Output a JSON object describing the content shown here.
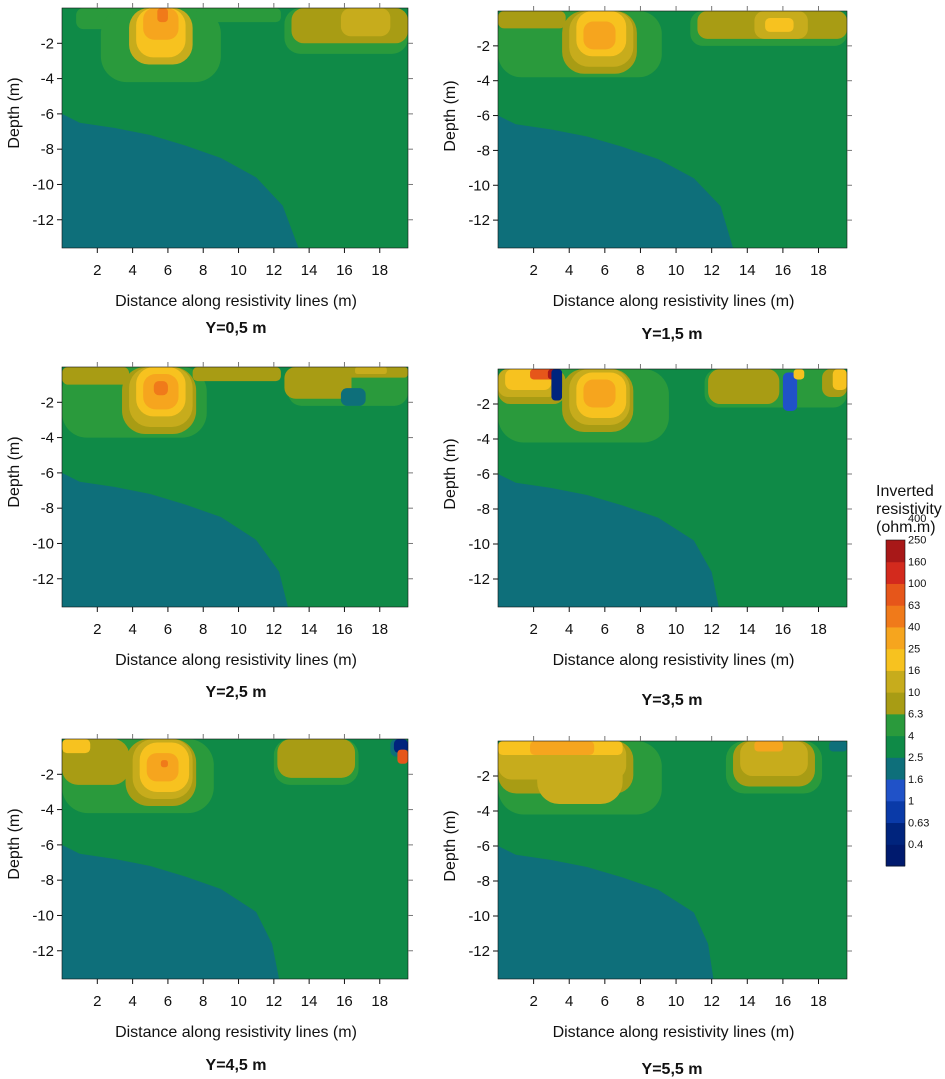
{
  "colors": {
    "bands": [
      "#001a6e",
      "#00247d",
      "#0a3aa8",
      "#2052c8",
      "#0e6f7a",
      "#0f8a47",
      "#2a9a3c",
      "#a89c14",
      "#c7ac1c",
      "#f7c21f",
      "#f6a51e",
      "#f07a1a",
      "#e6561a",
      "#d32a1d",
      "#a81818"
    ],
    "frame": "#111111"
  },
  "colorbar": {
    "title_lines": [
      "Inverted",
      "resistivity",
      "(ohm.m)"
    ],
    "labels": [
      "0.4",
      "0.63",
      "1",
      "1.6",
      "2.5",
      "4",
      "6.3",
      "10",
      "16",
      "25",
      "40",
      "63",
      "100",
      "160",
      "250",
      "400"
    ]
  },
  "chart_data": [
    {
      "type": "heatmap",
      "title": "Y=0,5 m",
      "xlabel": "Distance along resistivity lines (m)",
      "ylabel": "Depth (m)",
      "xlim": [
        0,
        19.6
      ],
      "ylim": [
        -13.6,
        0
      ],
      "xticks": [
        "2",
        "4",
        "6",
        "8",
        "10",
        "12",
        "14",
        "16",
        "18"
      ],
      "yticks": [
        "-2",
        "-4",
        "-6",
        "-8",
        "-10",
        "-12"
      ],
      "background_band": 5,
      "boundary": [
        [
          0,
          -6.0
        ],
        [
          1,
          -6.5
        ],
        [
          3,
          -6.8
        ],
        [
          5,
          -7.2
        ],
        [
          7,
          -7.8
        ],
        [
          9,
          -8.5
        ],
        [
          11,
          -9.6
        ],
        [
          12.5,
          -11.2
        ],
        [
          13.4,
          -13.6
        ]
      ],
      "anomalies": [
        {
          "x": 0.8,
          "y": 0,
          "w": 3.2,
          "h": 1.2,
          "band": 6
        },
        {
          "x": 2.2,
          "y": 0,
          "w": 6.8,
          "h": 4.2,
          "band": 6
        },
        {
          "x": 3.8,
          "y": 0,
          "w": 3.6,
          "h": 3.2,
          "band": 8
        },
        {
          "x": 4.2,
          "y": 0,
          "w": 2.8,
          "h": 2.8,
          "band": 9
        },
        {
          "x": 4.6,
          "y": 0,
          "w": 2.0,
          "h": 1.8,
          "band": 10
        },
        {
          "x": 5.4,
          "y": 0,
          "w": 0.6,
          "h": 0.8,
          "band": 11
        },
        {
          "x": 7.6,
          "y": 0,
          "w": 4.8,
          "h": 0.8,
          "band": 6
        },
        {
          "x": 12.6,
          "y": 0,
          "w": 7.0,
          "h": 2.6,
          "band": 6
        },
        {
          "x": 13.0,
          "y": 0,
          "w": 6.6,
          "h": 2.0,
          "band": 7
        },
        {
          "x": 15.8,
          "y": 0,
          "w": 2.8,
          "h": 1.6,
          "band": 8
        }
      ]
    },
    {
      "type": "heatmap",
      "title": "Y=1,5 m",
      "xlabel": "Distance along resistivity lines (m)",
      "ylabel": "Depth (m)",
      "xlim": [
        0,
        19.6
      ],
      "ylim": [
        -13.6,
        0
      ],
      "xticks": [
        "2",
        "4",
        "6",
        "8",
        "10",
        "12",
        "14",
        "16",
        "18"
      ],
      "yticks": [
        "-2",
        "-4",
        "-6",
        "-8",
        "-10",
        "-12"
      ],
      "background_band": 5,
      "boundary": [
        [
          0,
          -6.0
        ],
        [
          1,
          -6.5
        ],
        [
          3,
          -6.8
        ],
        [
          5,
          -7.2
        ],
        [
          7,
          -7.8
        ],
        [
          9,
          -8.5
        ],
        [
          11,
          -9.6
        ],
        [
          12.5,
          -11.2
        ],
        [
          13.2,
          -13.6
        ]
      ],
      "anomalies": [
        {
          "x": 0,
          "y": 0,
          "w": 9.2,
          "h": 3.8,
          "band": 6
        },
        {
          "x": 0,
          "y": 0,
          "w": 3.8,
          "h": 1.0,
          "band": 7
        },
        {
          "x": 3.6,
          "y": 0,
          "w": 4.2,
          "h": 3.6,
          "band": 7
        },
        {
          "x": 4.0,
          "y": 0,
          "w": 3.6,
          "h": 3.2,
          "band": 8
        },
        {
          "x": 4.4,
          "y": 0,
          "w": 2.8,
          "h": 2.6,
          "band": 9
        },
        {
          "x": 4.8,
          "y": 0.6,
          "w": 1.8,
          "h": 1.6,
          "band": 10
        },
        {
          "x": 10.8,
          "y": 0,
          "w": 8.8,
          "h": 2.0,
          "band": 6
        },
        {
          "x": 11.2,
          "y": 0,
          "w": 8.4,
          "h": 1.6,
          "band": 7
        },
        {
          "x": 14.4,
          "y": 0,
          "w": 3.0,
          "h": 1.6,
          "band": 8
        },
        {
          "x": 15.0,
          "y": 0.4,
          "w": 1.6,
          "h": 0.8,
          "band": 9
        }
      ]
    },
    {
      "type": "heatmap",
      "title": "Y=2,5 m",
      "xlabel": "Distance along resistivity lines (m)",
      "ylabel": "Depth (m)",
      "xlim": [
        0,
        19.6
      ],
      "ylim": [
        -13.6,
        0
      ],
      "xticks": [
        "2",
        "4",
        "6",
        "8",
        "10",
        "12",
        "14",
        "16",
        "18"
      ],
      "yticks": [
        "-2",
        "-4",
        "-6",
        "-8",
        "-10",
        "-12"
      ],
      "background_band": 5,
      "boundary": [
        [
          0,
          -6.0
        ],
        [
          1,
          -6.5
        ],
        [
          3,
          -6.8
        ],
        [
          5,
          -7.2
        ],
        [
          7,
          -7.8
        ],
        [
          9,
          -8.5
        ],
        [
          11,
          -9.8
        ],
        [
          12.3,
          -11.6
        ],
        [
          12.8,
          -13.6
        ]
      ],
      "anomalies": [
        {
          "x": 0,
          "y": 0,
          "w": 8.2,
          "h": 4.0,
          "band": 6
        },
        {
          "x": 0,
          "y": 0,
          "w": 3.8,
          "h": 1.0,
          "band": 7
        },
        {
          "x": 3.4,
          "y": 0,
          "w": 4.2,
          "h": 3.8,
          "band": 7
        },
        {
          "x": 3.8,
          "y": 0,
          "w": 3.6,
          "h": 3.4,
          "band": 8
        },
        {
          "x": 4.2,
          "y": 0,
          "w": 2.8,
          "h": 2.8,
          "band": 9
        },
        {
          "x": 4.6,
          "y": 0.4,
          "w": 2.0,
          "h": 2.0,
          "band": 10
        },
        {
          "x": 5.2,
          "y": 0.8,
          "w": 0.8,
          "h": 0.8,
          "band": 11
        },
        {
          "x": 7.4,
          "y": 0,
          "w": 5.0,
          "h": 0.8,
          "band": 7
        },
        {
          "x": 12.8,
          "y": 0,
          "w": 6.8,
          "h": 2.2,
          "band": 6
        },
        {
          "x": 12.6,
          "y": 0,
          "w": 3.8,
          "h": 1.8,
          "band": 7
        },
        {
          "x": 15.8,
          "y": 1.2,
          "w": 1.4,
          "h": 1.0,
          "band": 4
        },
        {
          "x": 15.8,
          "y": 0,
          "w": 3.8,
          "h": 0.6,
          "band": 7
        },
        {
          "x": 16.6,
          "y": 0,
          "w": 1.8,
          "h": 0.4,
          "band": 8
        }
      ]
    },
    {
      "type": "heatmap",
      "title": "Y=3,5 m",
      "xlabel": "Distance along resistivity lines (m)",
      "ylabel": "Depth (m)",
      "xlim": [
        0,
        19.6
      ],
      "ylim": [
        -13.6,
        0
      ],
      "xticks": [
        "2",
        "4",
        "6",
        "8",
        "10",
        "12",
        "14",
        "16",
        "18"
      ],
      "yticks": [
        "-2",
        "-4",
        "-6",
        "-8",
        "-10",
        "-12"
      ],
      "background_band": 5,
      "boundary": [
        [
          0,
          -6.0
        ],
        [
          1,
          -6.5
        ],
        [
          3,
          -6.8
        ],
        [
          5,
          -7.2
        ],
        [
          7,
          -7.8
        ],
        [
          9,
          -8.5
        ],
        [
          11,
          -9.8
        ],
        [
          12.0,
          -11.6
        ],
        [
          12.4,
          -13.6
        ]
      ],
      "anomalies": [
        {
          "x": 0,
          "y": 0,
          "w": 9.6,
          "h": 4.2,
          "band": 6
        },
        {
          "x": 0,
          "y": 0,
          "w": 3.8,
          "h": 2.0,
          "band": 7
        },
        {
          "x": 0,
          "y": 0,
          "w": 3.4,
          "h": 1.6,
          "band": 8
        },
        {
          "x": 0.4,
          "y": 0,
          "w": 2.6,
          "h": 1.2,
          "band": 9
        },
        {
          "x": 1.8,
          "y": 0,
          "w": 1.4,
          "h": 0.6,
          "band": 12
        },
        {
          "x": 2.8,
          "y": 0,
          "w": 0.6,
          "h": 0.6,
          "band": 14
        },
        {
          "x": 3.0,
          "y": 0,
          "w": 0.6,
          "h": 1.8,
          "band": 1
        },
        {
          "x": 3.6,
          "y": 0,
          "w": 4.0,
          "h": 3.6,
          "band": 7
        },
        {
          "x": 4.0,
          "y": 0,
          "w": 3.4,
          "h": 3.2,
          "band": 8
        },
        {
          "x": 4.4,
          "y": 0.2,
          "w": 2.8,
          "h": 2.6,
          "band": 9
        },
        {
          "x": 4.8,
          "y": 0.6,
          "w": 1.8,
          "h": 1.6,
          "band": 10
        },
        {
          "x": 11.6,
          "y": 0,
          "w": 8.0,
          "h": 2.2,
          "band": 6
        },
        {
          "x": 11.8,
          "y": 0,
          "w": 4.0,
          "h": 2.0,
          "band": 7
        },
        {
          "x": 16.0,
          "y": 0.2,
          "w": 0.8,
          "h": 2.2,
          "band": 3
        },
        {
          "x": 16.6,
          "y": 0,
          "w": 0.6,
          "h": 0.6,
          "band": 9
        },
        {
          "x": 18.2,
          "y": 0,
          "w": 1.4,
          "h": 1.6,
          "band": 7
        },
        {
          "x": 18.8,
          "y": 0,
          "w": 0.8,
          "h": 1.2,
          "band": 9
        }
      ]
    },
    {
      "type": "heatmap",
      "title": "Y=4,5 m",
      "xlabel": "Distance along resistivity lines (m)",
      "ylabel": "Depth (m)",
      "xlim": [
        0,
        19.6
      ],
      "ylim": [
        -13.6,
        0
      ],
      "xticks": [
        "2",
        "4",
        "6",
        "8",
        "10",
        "12",
        "14",
        "16",
        "18"
      ],
      "yticks": [
        "-2",
        "-4",
        "-6",
        "-8",
        "-10",
        "-12"
      ],
      "background_band": 5,
      "boundary": [
        [
          0,
          -6.0
        ],
        [
          1,
          -6.5
        ],
        [
          3,
          -6.8
        ],
        [
          5,
          -7.2
        ],
        [
          7,
          -7.8
        ],
        [
          9,
          -8.5
        ],
        [
          11,
          -9.8
        ],
        [
          11.9,
          -11.6
        ],
        [
          12.3,
          -13.6
        ]
      ],
      "anomalies": [
        {
          "x": 0,
          "y": 0,
          "w": 8.6,
          "h": 4.2,
          "band": 6
        },
        {
          "x": 0,
          "y": 0,
          "w": 3.8,
          "h": 2.6,
          "band": 7
        },
        {
          "x": 0,
          "y": 0,
          "w": 1.6,
          "h": 0.8,
          "band": 9
        },
        {
          "x": 3.6,
          "y": 0,
          "w": 4.0,
          "h": 3.8,
          "band": 7
        },
        {
          "x": 4.0,
          "y": 0,
          "w": 3.4,
          "h": 3.4,
          "band": 8
        },
        {
          "x": 4.4,
          "y": 0.2,
          "w": 2.8,
          "h": 2.8,
          "band": 9
        },
        {
          "x": 4.8,
          "y": 0.8,
          "w": 1.8,
          "h": 1.6,
          "band": 10
        },
        {
          "x": 5.6,
          "y": 1.2,
          "w": 0.4,
          "h": 0.4,
          "band": 11
        },
        {
          "x": 12.0,
          "y": 0,
          "w": 4.8,
          "h": 2.6,
          "band": 6
        },
        {
          "x": 12.2,
          "y": 0,
          "w": 4.4,
          "h": 2.2,
          "band": 7
        },
        {
          "x": 18.6,
          "y": 0,
          "w": 1.0,
          "h": 1.0,
          "band": 4
        },
        {
          "x": 18.8,
          "y": 0,
          "w": 0.8,
          "h": 0.8,
          "band": 1
        },
        {
          "x": 19.0,
          "y": 0.6,
          "w": 0.6,
          "h": 0.8,
          "band": 12
        }
      ]
    },
    {
      "type": "heatmap",
      "title": "Y=5,5 m",
      "xlabel": "Distance along resistivity lines (m)",
      "ylabel": "Depth (m)",
      "xlim": [
        0,
        19.6
      ],
      "ylim": [
        -13.6,
        0
      ],
      "xticks": [
        "2",
        "4",
        "6",
        "8",
        "10",
        "12",
        "14",
        "16",
        "18"
      ],
      "yticks": [
        "-2",
        "-4",
        "-6",
        "-8",
        "-10",
        "-12"
      ],
      "background_band": 5,
      "boundary": [
        [
          0,
          -6.0
        ],
        [
          1,
          -6.5
        ],
        [
          3,
          -6.8
        ],
        [
          5,
          -7.2
        ],
        [
          7,
          -7.8
        ],
        [
          9,
          -8.5
        ],
        [
          11,
          -9.8
        ],
        [
          11.8,
          -11.6
        ],
        [
          12.1,
          -13.6
        ]
      ],
      "anomalies": [
        {
          "x": 0,
          "y": 0,
          "w": 9.2,
          "h": 4.2,
          "band": 6
        },
        {
          "x": 0,
          "y": 0,
          "w": 7.6,
          "h": 3.0,
          "band": 7
        },
        {
          "x": 0,
          "y": 0,
          "w": 7.2,
          "h": 2.2,
          "band": 8
        },
        {
          "x": 2.2,
          "y": 0,
          "w": 4.8,
          "h": 3.6,
          "band": 8
        },
        {
          "x": 0,
          "y": 0,
          "w": 7.0,
          "h": 0.8,
          "band": 9
        },
        {
          "x": 1.8,
          "y": 0,
          "w": 3.6,
          "h": 0.8,
          "band": 10
        },
        {
          "x": 12.8,
          "y": 0,
          "w": 5.4,
          "h": 3.0,
          "band": 6
        },
        {
          "x": 13.2,
          "y": 0,
          "w": 4.6,
          "h": 2.6,
          "band": 7
        },
        {
          "x": 13.6,
          "y": 0,
          "w": 3.8,
          "h": 2.0,
          "band": 8
        },
        {
          "x": 14.4,
          "y": 0,
          "w": 1.6,
          "h": 0.6,
          "band": 10
        },
        {
          "x": 18.6,
          "y": 0,
          "w": 1.0,
          "h": 0.6,
          "band": 4
        }
      ]
    }
  ]
}
